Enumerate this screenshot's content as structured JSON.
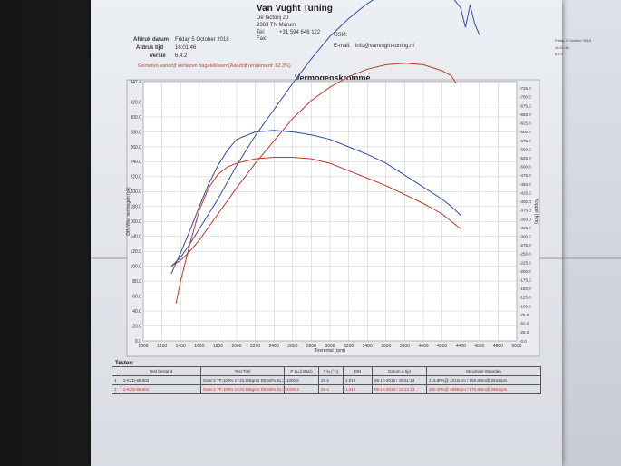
{
  "header": {
    "company": "Van Vught Tuning",
    "address1": "De factorij 20",
    "address2": "9363 TN Marum",
    "tel_label": "Tel:",
    "tel": "+31 594 646 122",
    "fax_label": "Fax:",
    "gsm_label": "GSM:",
    "email_label": "E-mail:",
    "email": "info@vanvught-tuning.nl",
    "print_date_label": "Afdruk datum",
    "print_date": "Friday 5 October 2018",
    "print_time_label": "Afdruk tijd",
    "print_time": "16:01:46",
    "version_label": "Versie",
    "version": "6.4.2"
  },
  "warning": "Gemeten aandrijf verliezen bagatelliseert(Aandrijf rendement: 82,3%)",
  "chart_data": {
    "type": "line",
    "title": "Vermogenskromme",
    "xlabel": "Toerental (rpm)",
    "ylabel": "DIN/Wiel vermogen (pk)",
    "y2label": "Koppel (Nm)",
    "xlim": [
      1000,
      5000
    ],
    "ylim": [
      0,
      347.4
    ],
    "y2lim": [
      0,
      744
    ],
    "x_ticks": [
      "1000",
      "1200",
      "1400",
      "1600",
      "1800",
      "2000",
      "2200",
      "2400",
      "2600",
      "2800",
      "3000",
      "3200",
      "3400",
      "3600",
      "3800",
      "4000",
      "4200",
      "4400",
      "4600",
      "4800",
      "5000"
    ],
    "y_ticks": [
      "0.0",
      "20.0",
      "40.0",
      "60.0",
      "80.0",
      "100.0",
      "120.0",
      "140.0",
      "160.0",
      "180.0",
      "200.0",
      "220.0",
      "240.0",
      "260.0",
      "280.0",
      "300.0",
      "320.0",
      "347.4"
    ],
    "y_ticks_values": [
      0,
      20,
      40,
      60,
      80,
      100,
      120,
      140,
      160,
      180,
      200,
      220,
      240,
      260,
      280,
      300,
      320,
      347.4
    ],
    "y2_ticks": [
      "0.0",
      "25.0",
      "50.0",
      "75.0",
      "100.0",
      "125.0",
      "150.0",
      "175.0",
      "200.0",
      "225.0",
      "250.0",
      "275.0",
      "300.0",
      "325.0",
      "350.0",
      "375.0",
      "400.0",
      "425.0",
      "450.0",
      "475.0",
      "500.0",
      "525.0",
      "550.0",
      "575.0",
      "600.0",
      "625.0",
      "650.0",
      "675.0",
      "700.0",
      "725.0"
    ],
    "y2_ticks_values": [
      0,
      25,
      50,
      75,
      100,
      125,
      150,
      175,
      200,
      225,
      250,
      275,
      300,
      325,
      350,
      375,
      400,
      425,
      450,
      475,
      500,
      525,
      550,
      575,
      600,
      625,
      650,
      675,
      700,
      725
    ],
    "colors": {
      "blue": "#2f4fa3",
      "red": "#c0392b"
    },
    "series": [
      {
        "id": "blue-power",
        "color": "#2f4fa3",
        "x": [
          1300,
          1400,
          1500,
          1600,
          1700,
          1800,
          1900,
          2000,
          2200,
          2400,
          2600,
          2800,
          3000,
          3200,
          3400,
          3600,
          3800,
          4000,
          4200,
          4300,
          4400
        ],
        "y": [
          90,
          118,
          148,
          180,
          210,
          235,
          255,
          270,
          280,
          282,
          280,
          276,
          270,
          260,
          250,
          238,
          222,
          206,
          190,
          180,
          168
        ]
      },
      {
        "id": "blue-torque",
        "color": "#2f4fa3",
        "x": [
          1300,
          1400,
          1500,
          1600,
          1800,
          2000,
          2200,
          2400,
          2600,
          2800,
          3000,
          3200,
          3400,
          3600,
          3800,
          4000,
          4200,
          4300,
          4400,
          4450,
          4500,
          4550,
          4600
        ],
        "y": [
          100,
          112,
          130,
          150,
          190,
          235,
          275,
          310,
          345,
          378,
          408,
          432,
          452,
          468,
          476,
          478,
          472,
          462,
          446,
          420,
          450,
          425,
          410
        ]
      },
      {
        "id": "red-power",
        "color": "#c0392b",
        "x": [
          1350,
          1400,
          1500,
          1600,
          1700,
          1800,
          1900,
          2000,
          2200,
          2400,
          2600,
          2800,
          3000,
          3200,
          3400,
          3600,
          3800,
          4000,
          4200,
          4400
        ],
        "y": [
          50,
          80,
          130,
          175,
          205,
          223,
          233,
          238,
          244,
          246,
          246,
          244,
          238,
          228,
          218,
          208,
          196,
          184,
          170,
          150
        ]
      },
      {
        "id": "red-torque",
        "color": "#c0392b",
        "x": [
          1300,
          1400,
          1500,
          1600,
          1800,
          2000,
          2200,
          2400,
          2600,
          2800,
          3000,
          3200,
          3400,
          3600,
          3800,
          4000,
          4200,
          4300,
          4350
        ],
        "y": [
          100,
          108,
          120,
          135,
          170,
          205,
          238,
          268,
          298,
          322,
          340,
          354,
          364,
          370,
          372,
          370,
          362,
          355,
          345
        ]
      }
    ]
  },
  "tests": {
    "title": "Testen:",
    "columns": [
      "",
      "Test bestand",
      "Test Titel",
      "P Lu.(mBar)",
      "T lu.(°C)",
      "DIN",
      "Datum & tijd",
      "Maximale Waarden"
    ],
    "rows": [
      {
        "num": "1",
        "file": "2-KZD-85.003",
        "title": "Gear:4 TP:100% VI:22,50kgm2 DE:82% XL:30%",
        "p": "1000.6",
        "t": "26.4",
        "din": "1.018",
        "date": "05-10-2018 / 15:51:14",
        "max": "315.8PK@ 4212rpm / 660.8Nm@ 2542rpm"
      },
      {
        "num": "2",
        "file": "2-KZD-85.001",
        "title": "Gear:4 TP:100% VI:22,50kgm2 DE:82% XL:30%",
        "p": "1000.3",
        "t": "26.4",
        "din": "1.019",
        "date": "05-10-2018 / 14:22:13",
        "max": "260.1PK@ 4085rpm / 570.8Nm@ 2604rpm"
      }
    ]
  }
}
